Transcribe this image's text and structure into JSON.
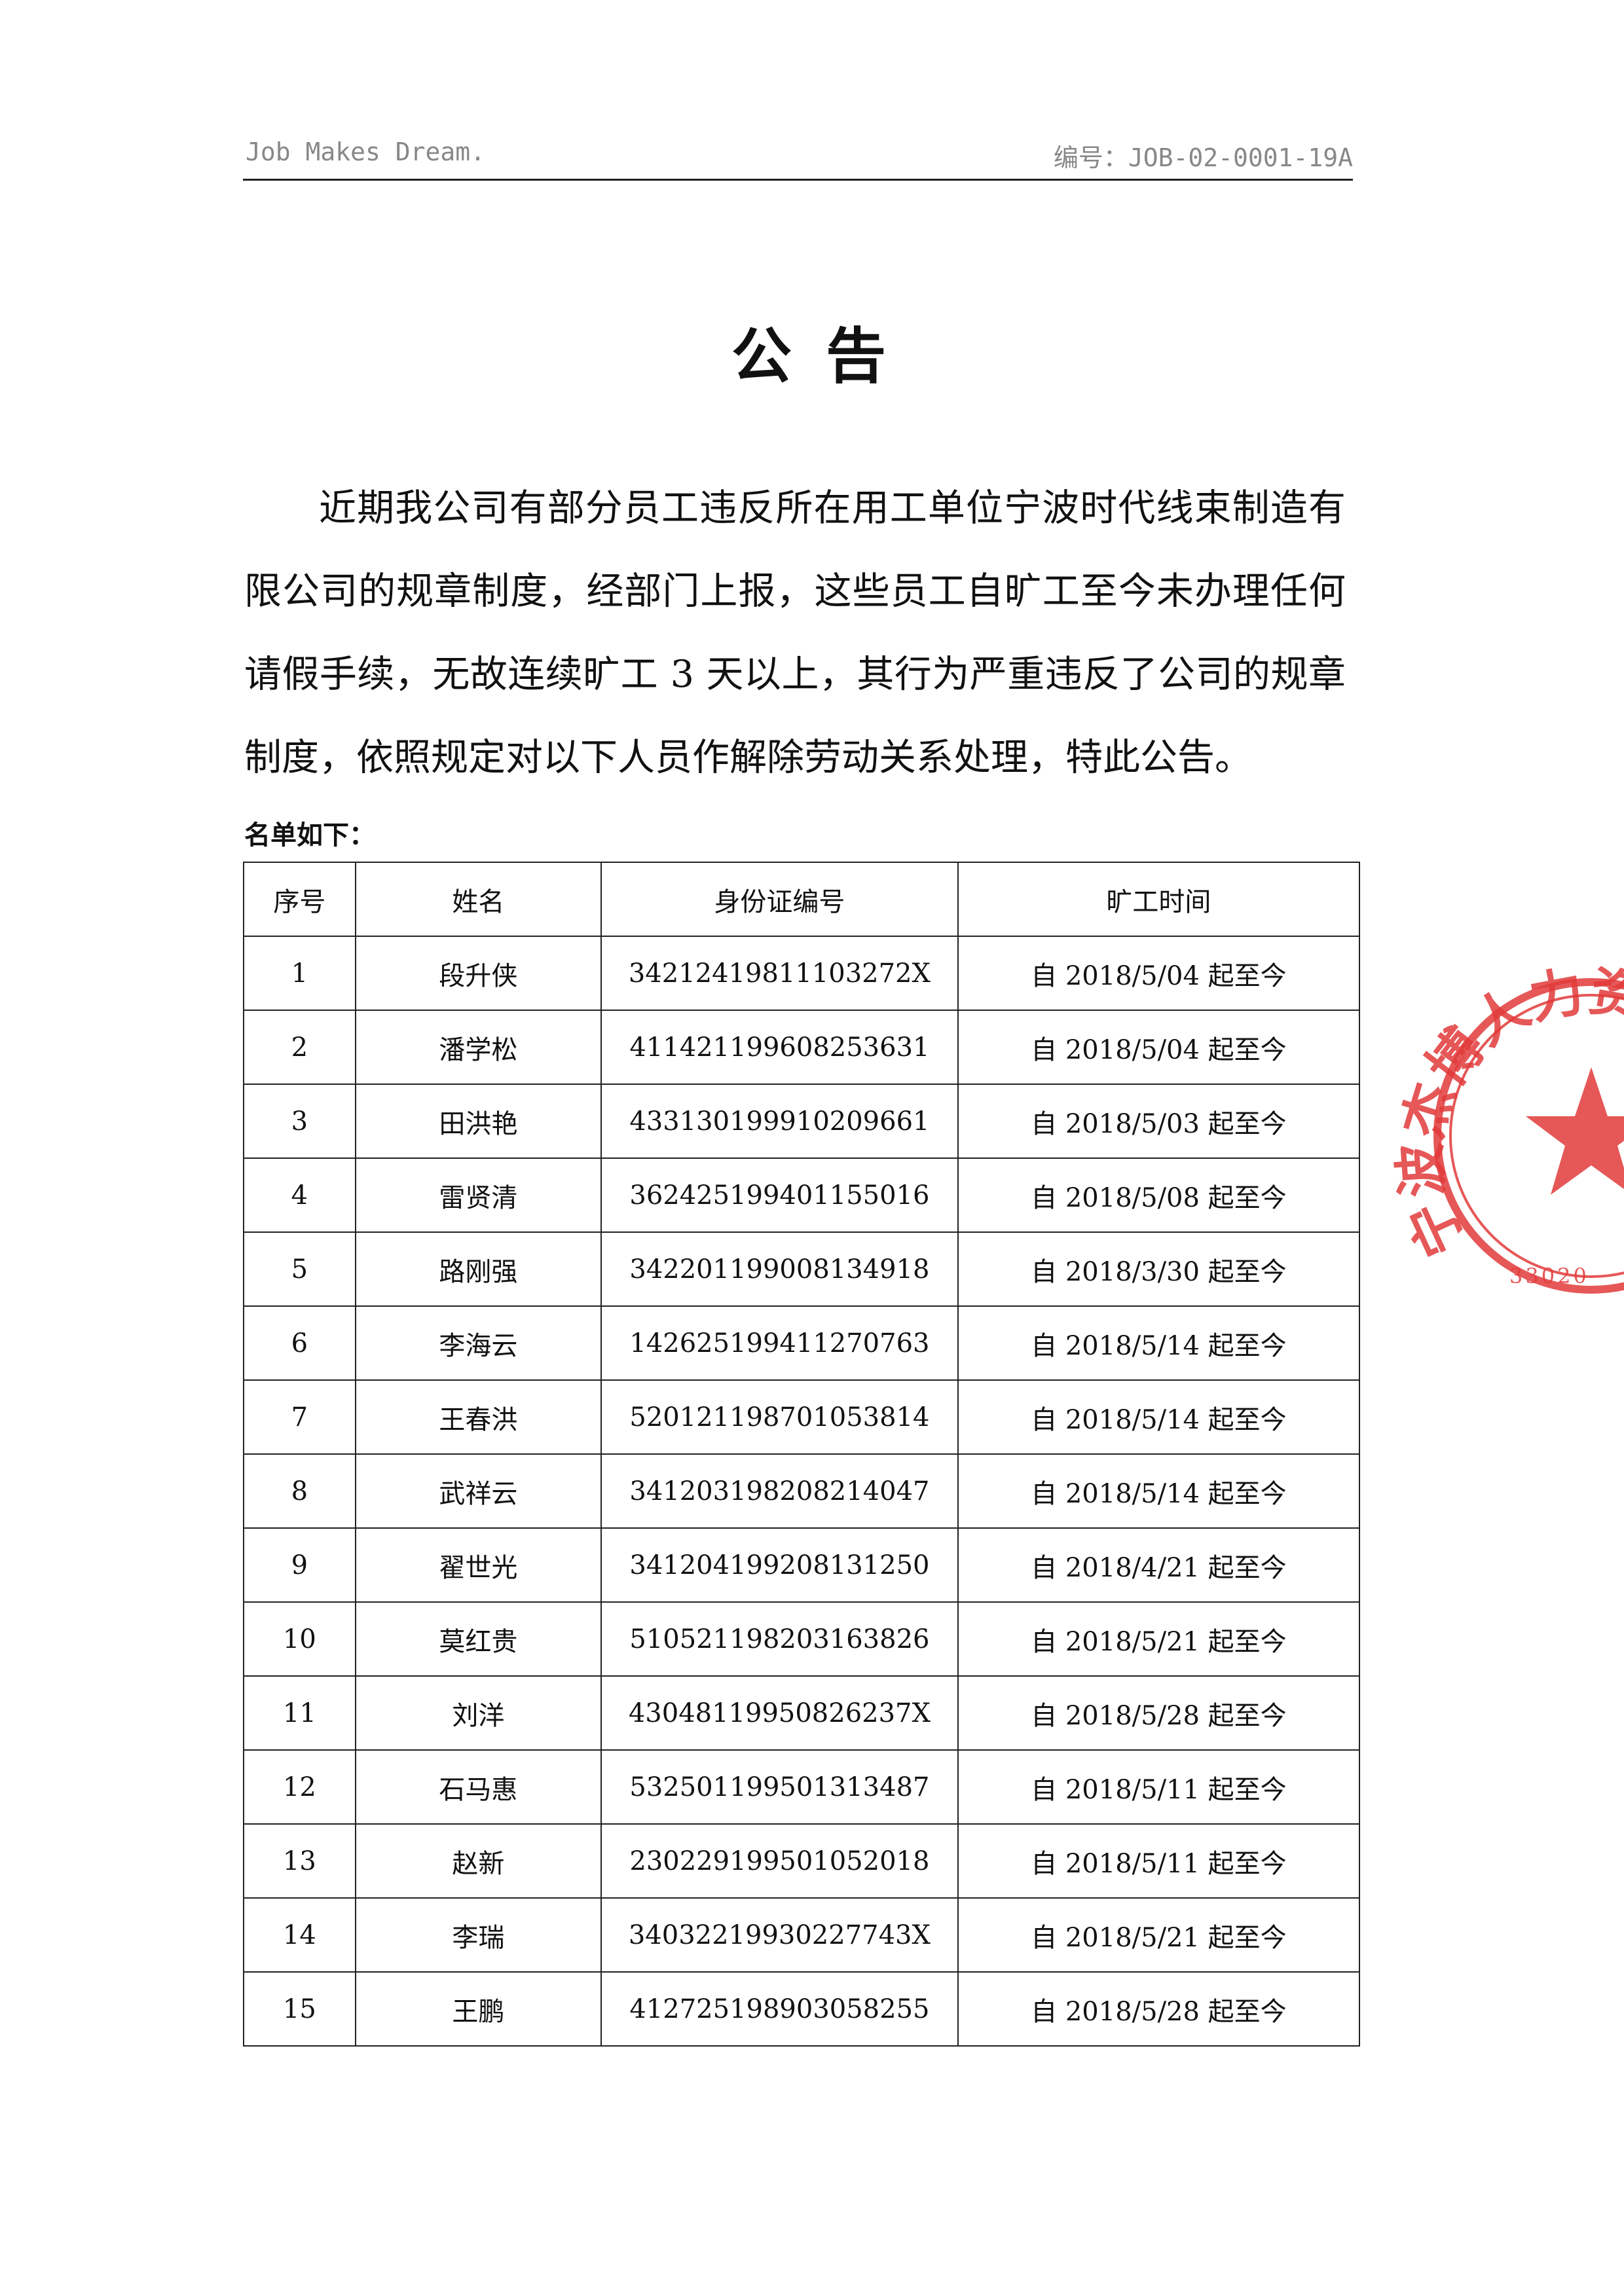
{
  "header": {
    "left": "Job Makes Dream.",
    "right": "编号：JOB-02-0001-19A"
  },
  "title": "公 告",
  "body": "近期我公司有部分员工违反所在用工单位宁波时代线束制造有限公司的规章制度，经部门上报，这些员工自旷工至今未办理任何请假手续，无故连续旷工 3 天以上，其行为严重违反了公司的规章制度，依照规定对以下人员作解除劳动关系处理，特此公告。",
  "list_label": "名单如下：",
  "table": {
    "header": [
      "序号",
      "姓名",
      "身份证编号",
      "旷工时间"
    ],
    "rows": [
      [
        "1",
        "段升侠",
        "34212419811103272X",
        "自 2018/5/04 起至今"
      ],
      [
        "2",
        "潘学松",
        "411421199608253631",
        "自 2018/5/04 起至今"
      ],
      [
        "3",
        "田洪艳",
        "433130199910209661",
        "自 2018/5/03 起至今"
      ],
      [
        "4",
        "雷贤清",
        "362425199401155016",
        "自 2018/5/08 起至今"
      ],
      [
        "5",
        "路刚强",
        "342201199008134918",
        "自 2018/3/30 起至今"
      ],
      [
        "6",
        "李海云",
        "142625199411270763",
        "自 2018/5/14 起至今"
      ],
      [
        "7",
        "王春洪",
        "520121198701053814",
        "自 2018/5/14 起至今"
      ],
      [
        "8",
        "武祥云",
        "341203198208214047",
        "自 2018/5/14 起至今"
      ],
      [
        "9",
        "翟世光",
        "341204199208131250",
        "自 2018/4/21 起至今"
      ],
      [
        "10",
        "莫红贵",
        "510521198203163826",
        "自 2018/5/21 起至今"
      ],
      [
        "11",
        "刘洋",
        "43048119950826237X",
        "自 2018/5/28 起至今"
      ],
      [
        "12",
        "石马惠",
        "532501199501313487",
        "自 2018/5/11 起至今"
      ],
      [
        "13",
        "赵新",
        "230229199501052018",
        "自 2018/5/11 起至今"
      ],
      [
        "14",
        "李瑞",
        "34032219930227743X",
        "自 2018/5/21 起至今"
      ],
      [
        "15",
        "王鹏",
        "412725198903058255",
        "自 2018/5/28 起至今"
      ]
    ]
  },
  "stamp": {
    "text": "宁波杰博人力资",
    "code": "33020"
  }
}
